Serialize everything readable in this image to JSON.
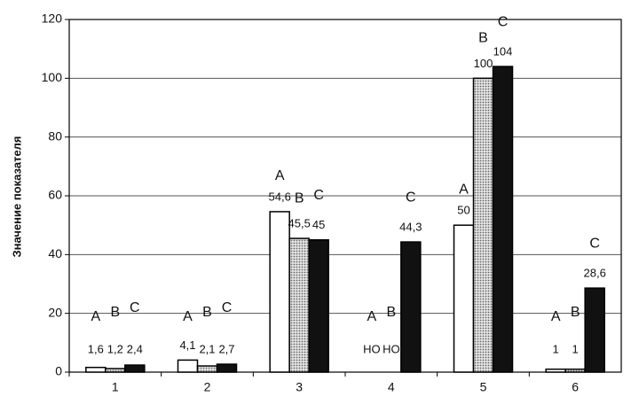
{
  "chart_data": {
    "type": "bar",
    "y_label": "Значение показателя",
    "categories": [
      "1",
      "2",
      "3",
      "4",
      "5",
      "6"
    ],
    "series": [
      {
        "name": "A",
        "color": "#ffffff",
        "values": [
          1.6,
          4.1,
          54.6,
          null,
          50,
          1
        ],
        "value_labels": [
          "1,6",
          "4,1",
          "54,6",
          "НО",
          "50",
          "1"
        ]
      },
      {
        "name": "B",
        "color": "#bdbdbd",
        "values": [
          1.2,
          2.1,
          45.5,
          null,
          100,
          1
        ],
        "value_labels": [
          "1,2",
          "2,1",
          "45,5",
          "НО",
          "100",
          "1"
        ]
      },
      {
        "name": "C",
        "color": "#111111",
        "values": [
          2.4,
          2.7,
          45,
          44.3,
          104,
          28.6
        ],
        "value_labels": [
          "2,4",
          "2,7",
          "45",
          "44,3",
          "104",
          "28,6"
        ]
      }
    ],
    "ylim": [
      0,
      120
    ],
    "yticks": [
      0,
      20,
      40,
      60,
      80,
      100,
      120
    ],
    "grid": true
  }
}
